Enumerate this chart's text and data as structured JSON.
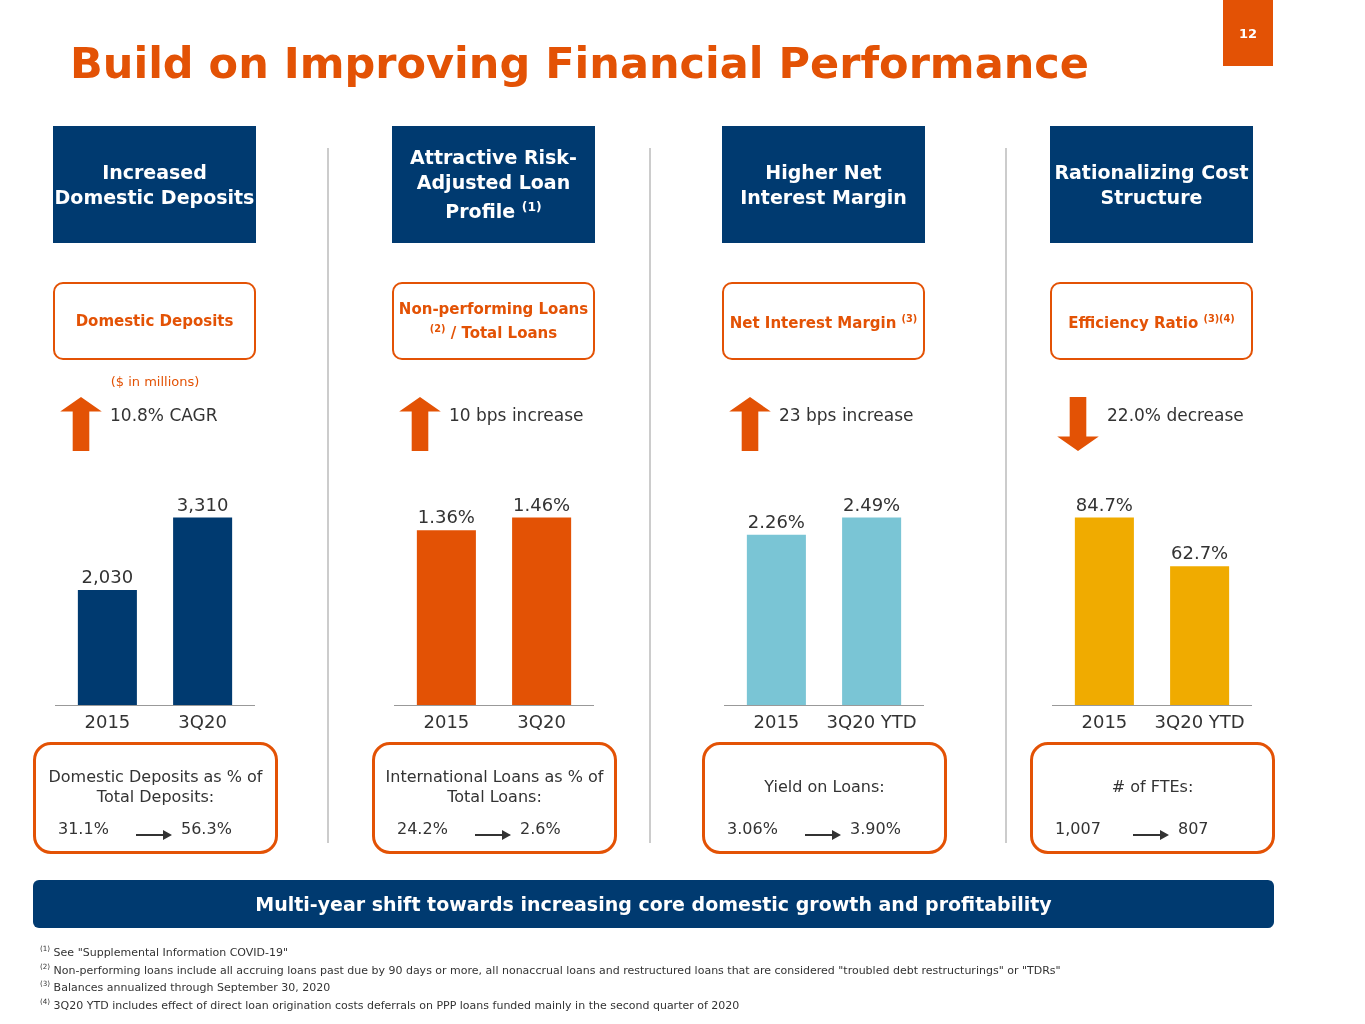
{
  "chart_data": [
    {
      "type": "bar",
      "title": "Increased Domestic Deposits",
      "subtitle": "Domestic Deposits",
      "categories": [
        "2015",
        "3Q20"
      ],
      "values": [
        2030,
        3310
      ],
      "value_labels": [
        "2,030",
        "3,310"
      ],
      "color": "#003a70",
      "annotations": [
        "10.8% CAGR",
        "Domestic Deposits as % of Total Deposits:",
        "31.1%",
        "56.3%",
        "($ in millions)",
        "Build on Improving Financial Performance",
        "12"
      ]
    },
    {
      "type": "bar",
      "title": "Attractive Risk-Adjusted Loan Profile $^{(1)}$",
      "subtitle": "Non-performing Loans $^{(2)}$ / Total Loans",
      "categories": [
        "2015",
        "3Q20"
      ],
      "values": [
        1.36,
        1.46
      ],
      "value_labels": [
        "1.36%",
        "1.46%"
      ],
      "color": "#e35205",
      "annotations": [
        "10 bps increase",
        "International Loans as % of Total Loans:",
        "24.2%",
        "2.6%"
      ]
    },
    {
      "type": "bar",
      "title": "Higher Net Interest Margin",
      "subtitle": "Net Interest Margin $^{(3)}$",
      "categories": [
        "2015",
        "3Q20 YTD"
      ],
      "values": [
        2.26,
        2.49
      ],
      "value_labels": [
        "2.26%",
        "2.49%"
      ],
      "color": "#7ac5d5",
      "annotations": [
        "23 bps increase",
        "Yield on Loans:",
        "3.06%",
        "3.90%"
      ]
    },
    {
      "type": "bar",
      "title": "Rationalizing Cost Structure",
      "subtitle": "Efficiency Ratio $^{(3)(4)}$",
      "categories": [
        "2015",
        "3Q20 YTD"
      ],
      "values": [
        84.7,
        62.7
      ],
      "value_labels": [
        "84.7%",
        "62.7%"
      ],
      "color": "#f0ab00",
      "annotations": [
        "22.0% decrease",
        "# of FTEs:",
        "1,007",
        "807",
        "Multi-year shift towards increasing core domestic growth and profitability",
        "$^{(1)}$ See \"Supplemental Information COVID-19\"",
        "$^{(2)}$ Non-performing loans include all accruing loans past due by 90 days or more, all nonaccrual loans and restructured loans that are considered \"troubled debt restructurings\" or \"TDRs\"",
        "$^{(3)}$ Balances annualized through September 30, 2020",
        "$^{(4)}$ 3Q20 YTD includes effect of direct loan origination costs deferrals on PPP loans funded mainly in the second quarter of 2020"
      ]
    }
  ]
}
